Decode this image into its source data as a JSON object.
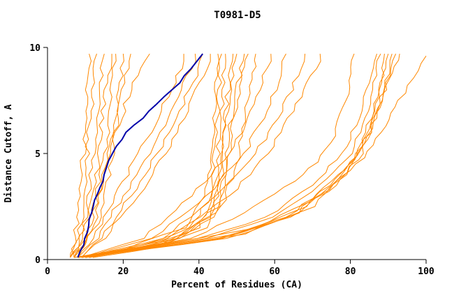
{
  "chart_data": {
    "type": "line",
    "title": "T0981-D5",
    "xlabel": "Percent of Residues (CA)",
    "ylabel": "Distance Cutoff, A",
    "xlim": [
      0,
      100
    ],
    "ylim": [
      0,
      10
    ],
    "xticks": [
      0,
      20,
      40,
      60,
      80,
      100
    ],
    "yticks": [
      0,
      5,
      10
    ],
    "grid": false,
    "legend": "none",
    "colors": {
      "model_line": "#ff8800",
      "highlight_line": "#0000aa",
      "axis": "#000000",
      "background": "#ffffff"
    },
    "highlight_series": {
      "name": "highlighted-model",
      "points": [
        [
          8,
          0.1
        ],
        [
          10,
          1
        ],
        [
          12,
          2.5
        ],
        [
          15,
          4
        ],
        [
          17,
          5
        ],
        [
          21,
          6
        ],
        [
          27,
          7
        ],
        [
          33,
          8
        ],
        [
          38,
          9
        ],
        [
          41,
          9.7
        ]
      ]
    },
    "series": [
      {
        "points": [
          [
            6,
            0.1
          ],
          [
            7,
            0.5
          ],
          [
            8,
            2
          ],
          [
            9,
            4
          ],
          [
            10,
            6
          ],
          [
            10.5,
            8
          ],
          [
            11,
            9.7
          ]
        ]
      },
      {
        "points": [
          [
            6,
            0.1
          ],
          [
            7.5,
            0.5
          ],
          [
            9,
            2
          ],
          [
            10,
            4
          ],
          [
            11,
            6
          ],
          [
            12,
            8
          ],
          [
            13,
            9.7
          ]
        ]
      },
      {
        "points": [
          [
            7,
            0.1
          ],
          [
            8,
            0.5
          ],
          [
            10,
            2
          ],
          [
            11.5,
            4
          ],
          [
            13,
            6
          ],
          [
            14,
            8
          ],
          [
            15,
            9.7
          ]
        ]
      },
      {
        "points": [
          [
            6,
            0.1
          ],
          [
            8,
            0.6
          ],
          [
            11,
            2
          ],
          [
            13,
            4
          ],
          [
            14,
            6
          ],
          [
            15.5,
            8
          ],
          [
            17,
            9.7
          ]
        ]
      },
      {
        "points": [
          [
            7,
            0.1
          ],
          [
            9,
            0.6
          ],
          [
            12,
            2
          ],
          [
            14,
            4
          ],
          [
            16,
            6
          ],
          [
            17,
            8
          ],
          [
            18,
            9.7
          ]
        ]
      },
      {
        "points": [
          [
            6,
            0.1
          ],
          [
            9,
            0.7
          ],
          [
            13,
            2
          ],
          [
            15,
            4
          ],
          [
            17,
            6
          ],
          [
            19,
            8
          ],
          [
            20,
            9.7
          ]
        ]
      },
      {
        "points": [
          [
            7,
            0.1
          ],
          [
            10,
            0.8
          ],
          [
            14,
            2
          ],
          [
            16.5,
            4
          ],
          [
            18,
            6
          ],
          [
            20,
            8
          ],
          [
            22,
            9.7
          ]
        ]
      },
      {
        "points": [
          [
            7,
            0.1
          ],
          [
            10,
            1
          ],
          [
            15,
            4
          ],
          [
            18,
            6
          ],
          [
            22,
            8
          ],
          [
            27,
            9.7
          ]
        ]
      },
      {
        "points": [
          [
            8,
            0.1
          ],
          [
            12,
            1
          ],
          [
            18,
            3
          ],
          [
            24,
            5
          ],
          [
            30,
            7
          ],
          [
            35,
            9
          ],
          [
            36,
            9.7
          ]
        ]
      },
      {
        "points": [
          [
            8,
            0.1
          ],
          [
            13,
            1
          ],
          [
            20,
            3
          ],
          [
            27,
            5
          ],
          [
            33,
            7
          ],
          [
            38,
            9
          ],
          [
            39,
            9.7
          ]
        ]
      },
      {
        "points": [
          [
            9,
            0.1
          ],
          [
            14,
            1
          ],
          [
            22,
            3
          ],
          [
            29,
            5
          ],
          [
            35,
            7
          ],
          [
            40,
            9
          ],
          [
            41,
            9.7
          ]
        ]
      },
      {
        "points": [
          [
            9,
            0.1
          ],
          [
            15,
            1
          ],
          [
            24,
            3
          ],
          [
            31,
            5
          ],
          [
            37,
            7
          ],
          [
            42,
            9
          ],
          [
            43,
            9.7
          ]
        ]
      },
      {
        "points": [
          [
            8,
            0.1
          ],
          [
            25,
            0.5
          ],
          [
            40,
            1.5
          ],
          [
            44,
            3
          ],
          [
            45,
            5
          ],
          [
            46,
            7
          ],
          [
            47,
            9.7
          ]
        ]
      },
      {
        "points": [
          [
            9,
            0.1
          ],
          [
            28,
            0.6
          ],
          [
            42,
            1.5
          ],
          [
            45,
            3
          ],
          [
            46,
            5
          ],
          [
            47,
            7
          ],
          [
            49,
            9.7
          ]
        ]
      },
      {
        "points": [
          [
            8,
            0.1
          ],
          [
            30,
            0.7
          ],
          [
            43,
            2
          ],
          [
            46,
            4
          ],
          [
            47,
            6
          ],
          [
            48,
            8
          ],
          [
            50,
            9.7
          ]
        ]
      },
      {
        "points": [
          [
            10,
            0.1
          ],
          [
            32,
            0.8
          ],
          [
            44,
            2
          ],
          [
            47,
            4
          ],
          [
            48,
            6
          ],
          [
            50,
            8
          ],
          [
            52,
            9.7
          ]
        ]
      },
      {
        "points": [
          [
            7,
            0.1
          ],
          [
            22,
            0.5
          ],
          [
            38,
            1.5
          ],
          [
            43,
            3
          ],
          [
            44,
            5
          ],
          [
            45,
            7
          ],
          [
            46,
            9.7
          ]
        ]
      },
      {
        "points": [
          [
            10,
            0.1
          ],
          [
            34,
            1
          ],
          [
            45,
            2.5
          ],
          [
            48,
            4.5
          ],
          [
            49,
            6.5
          ],
          [
            51,
            8.5
          ],
          [
            53,
            9.7
          ]
        ]
      },
      {
        "points": [
          [
            7,
            0.1
          ],
          [
            20,
            0.5
          ],
          [
            36,
            1.5
          ],
          [
            42,
            3
          ],
          [
            43,
            5
          ],
          [
            44,
            7
          ],
          [
            45,
            9.7
          ]
        ]
      },
      {
        "points": [
          [
            11,
            0.1
          ],
          [
            35,
            1
          ],
          [
            46,
            2.5
          ],
          [
            50,
            4.5
          ],
          [
            52,
            6.5
          ],
          [
            54,
            8.5
          ],
          [
            55,
            9.7
          ]
        ]
      },
      {
        "points": [
          [
            9,
            0.1
          ],
          [
            25,
            1
          ],
          [
            38,
            3
          ],
          [
            48,
            5
          ],
          [
            54,
            7
          ],
          [
            58,
            9
          ],
          [
            59,
            9.7
          ]
        ]
      },
      {
        "points": [
          [
            10,
            0.1
          ],
          [
            28,
            1
          ],
          [
            42,
            3
          ],
          [
            52,
            5
          ],
          [
            58,
            7
          ],
          [
            62,
            9
          ],
          [
            63,
            9.7
          ]
        ]
      },
      {
        "points": [
          [
            10,
            0.1
          ],
          [
            30,
            1
          ],
          [
            45,
            3
          ],
          [
            55,
            5
          ],
          [
            62,
            7
          ],
          [
            67,
            9
          ],
          [
            68,
            9.7
          ]
        ]
      },
      {
        "points": [
          [
            11,
            0.1
          ],
          [
            32,
            1
          ],
          [
            48,
            3
          ],
          [
            58,
            5
          ],
          [
            65,
            7
          ],
          [
            71,
            9
          ],
          [
            72,
            9.7
          ]
        ]
      },
      {
        "points": [
          [
            10,
            0.1
          ],
          [
            38,
            1
          ],
          [
            55,
            2.5
          ],
          [
            68,
            4
          ],
          [
            75,
            5.5
          ],
          [
            79,
            7.5
          ],
          [
            81,
            9.7
          ]
        ]
      },
      {
        "points": [
          [
            8,
            0.1
          ],
          [
            40,
            1
          ],
          [
            58,
            2
          ],
          [
            70,
            3.5
          ],
          [
            78,
            5
          ],
          [
            83,
            7
          ],
          [
            86,
            9
          ],
          [
            87,
            9.7
          ]
        ]
      },
      {
        "points": [
          [
            9,
            0.1
          ],
          [
            42,
            1
          ],
          [
            60,
            2
          ],
          [
            72,
            3.5
          ],
          [
            80,
            5
          ],
          [
            85,
            7
          ],
          [
            88,
            9.7
          ]
        ]
      },
      {
        "points": [
          [
            10,
            0.1
          ],
          [
            45,
            1
          ],
          [
            63,
            2
          ],
          [
            75,
            3.5
          ],
          [
            82,
            5
          ],
          [
            86,
            7
          ],
          [
            90,
            9.7
          ]
        ]
      },
      {
        "points": [
          [
            10,
            0.1
          ],
          [
            48,
            1
          ],
          [
            66,
            2.2
          ],
          [
            77,
            4
          ],
          [
            84,
            5.5
          ],
          [
            88,
            7.5
          ],
          [
            91,
            9.7
          ]
        ]
      },
      {
        "points": [
          [
            11,
            0.1
          ],
          [
            50,
            1.2
          ],
          [
            68,
            2.5
          ],
          [
            79,
            4
          ],
          [
            85,
            6
          ],
          [
            89,
            8
          ],
          [
            92,
            9.7
          ]
        ]
      },
      {
        "points": [
          [
            12,
            0.1
          ],
          [
            52,
            1.2
          ],
          [
            70,
            2.5
          ],
          [
            80,
            4.5
          ],
          [
            86,
            6.5
          ],
          [
            90,
            8.5
          ],
          [
            93,
            9.7
          ]
        ]
      },
      {
        "points": [
          [
            9,
            0.1
          ],
          [
            46,
            1
          ],
          [
            64,
            2
          ],
          [
            76,
            3.5
          ],
          [
            83,
            5
          ],
          [
            87,
            7
          ],
          [
            89,
            9.7
          ]
        ]
      },
      {
        "points": [
          [
            11,
            0.1
          ],
          [
            55,
            1.5
          ],
          [
            72,
            3
          ],
          [
            82,
            4.5
          ],
          [
            88,
            6
          ],
          [
            93,
            7.5
          ],
          [
            100,
            9.6
          ]
        ]
      }
    ]
  }
}
